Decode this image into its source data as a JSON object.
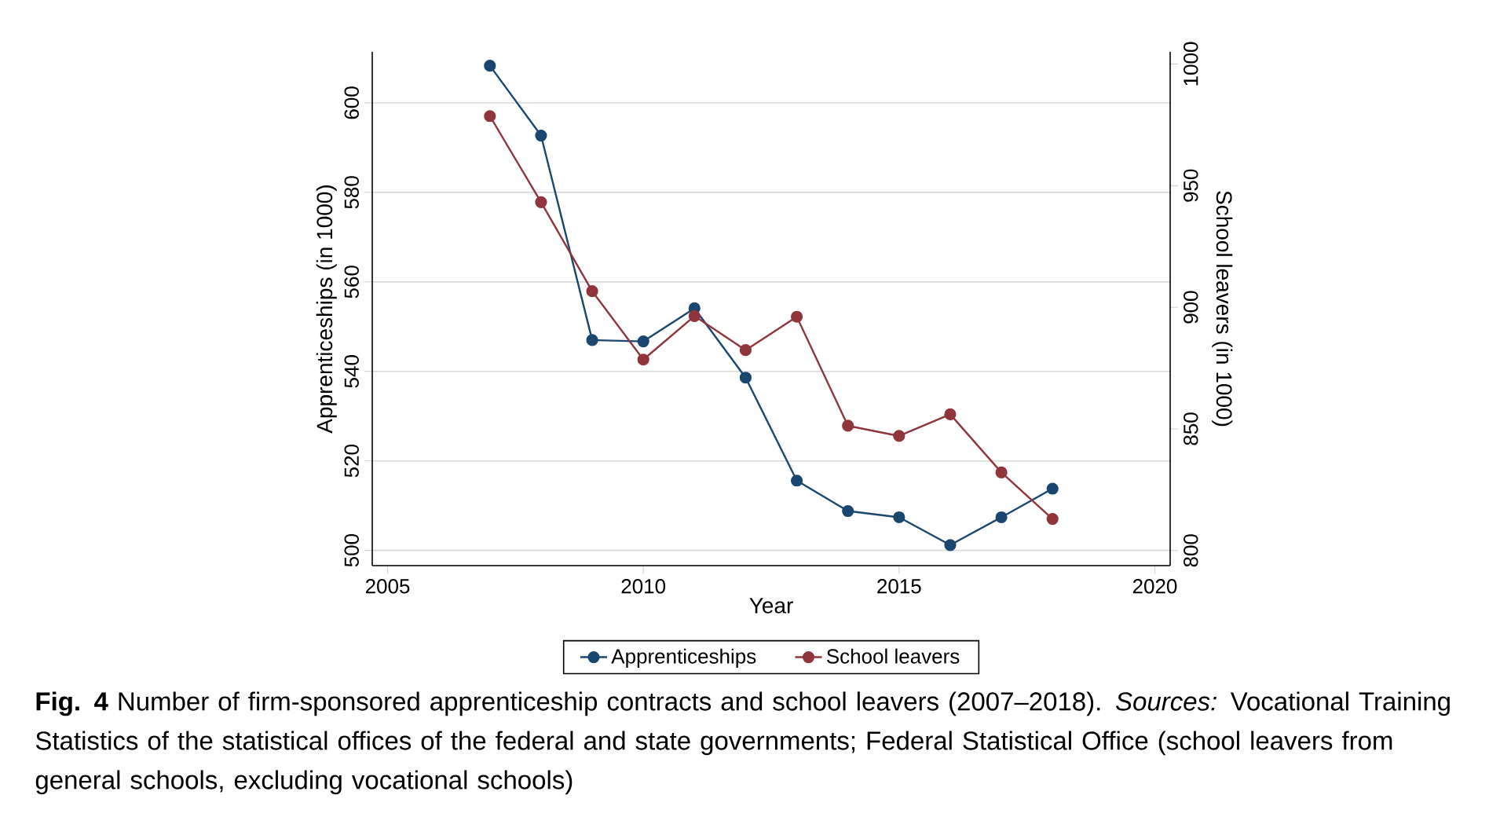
{
  "chart_data": {
    "type": "line",
    "xlabel": "Year",
    "ylabel": "Apprenticeships (in 1000)",
    "y2label": "School leavers (in 1000)",
    "x": [
      2007,
      2008,
      2009,
      2010,
      2011,
      2012,
      2013,
      2014,
      2015,
      2016,
      2017,
      2018
    ],
    "series": [
      {
        "name": "Apprenticeships",
        "color": "#1a476f",
        "values": [
          608.3,
          592.7,
          547.0,
          546.7,
          554.1,
          538.6,
          515.6,
          508.8,
          507.4,
          501.2,
          507.4,
          513.8
        ]
      },
      {
        "name": "School leavers",
        "color": "#90353b",
        "axis": "y2",
        "values": [
          978.6,
          943.2,
          906.6,
          878.5,
          896.4,
          882.4,
          896.1,
          851.3,
          847.1,
          856.0,
          832.1,
          813.0
        ]
      }
    ],
    "xlim": [
      2004.7,
      2020.3
    ],
    "xticks": [
      2005,
      2010,
      2015,
      2020
    ],
    "ylim": [
      496.6,
      611.4
    ],
    "yticks": [
      500,
      520,
      540,
      560,
      580,
      600
    ],
    "y2lim": [
      793.8,
      1005
    ],
    "y2ticks": [
      800,
      850,
      900,
      950,
      1000
    ],
    "grid": "y",
    "legend": "bottom",
    "marker": "circle",
    "annotations": [
      "**Fig. 4** Number of firm-sponsored apprenticeship contracts and school leavers (2007–2018). *Sources:* Vocational Training Statistics of the statistical offices of the federal and state governments; Federal Statistical Office (school leavers from general schools, excluding vocational schools)"
    ]
  }
}
